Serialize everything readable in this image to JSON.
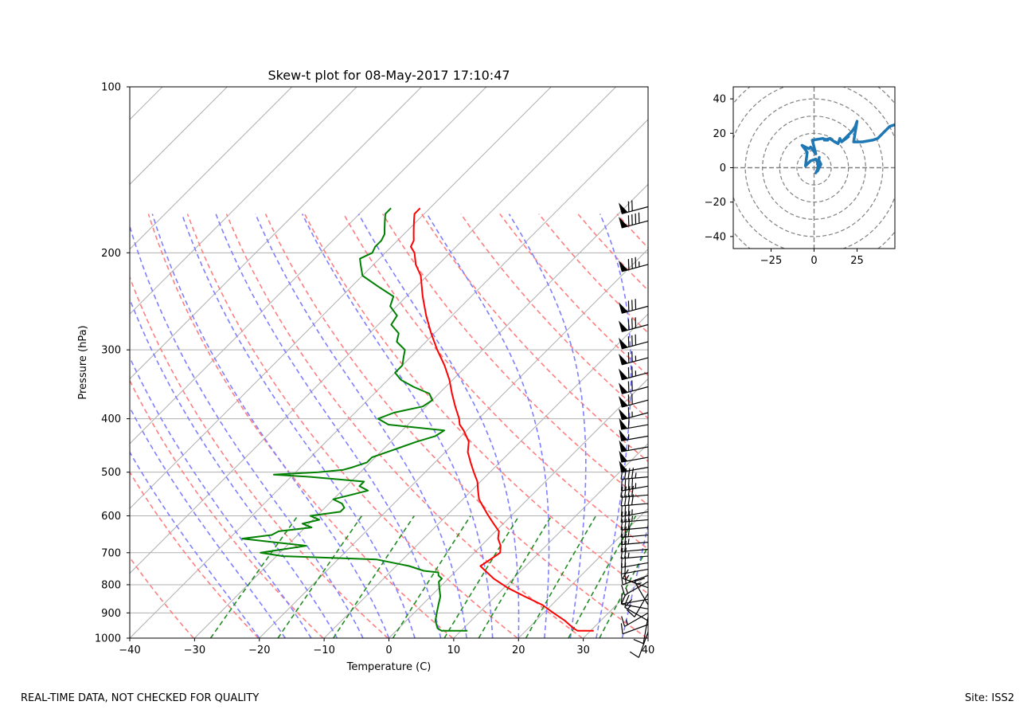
{
  "footer": {
    "disclaimer": "REAL-TIME DATA, NOT CHECKED FOR QUALITY",
    "site": "Site: ISS2"
  },
  "colors": {
    "temperature": "#ff0000",
    "dewpoint": "#008000",
    "dry_adiabats": "#ff7f7f",
    "moist_adiabats": "#7f7fff",
    "mixing_ratio": "#228b22",
    "isotherms": "#b0b0b0",
    "hodograph": "#1f77b4",
    "barbs": "#000000"
  },
  "chart_data": [
    {
      "type": "skew-t",
      "title": "Skew-t plot for 08-May-2017 17:10:47",
      "xlabel": "Temperature (C)",
      "ylabel": "Pressure (hPa)",
      "xlim": [
        -40,
        40
      ],
      "ylim": [
        1000,
        100
      ],
      "y_scale": "log",
      "x_ticks": [
        -40,
        -30,
        -20,
        -10,
        0,
        10,
        20,
        30,
        40
      ],
      "x_tick_labels": [
        "−40",
        "−30",
        "−20",
        "−10",
        "0",
        "10",
        "20",
        "30",
        "40"
      ],
      "y_ticks": [
        1000,
        900,
        800,
        700,
        600,
        500,
        400,
        300,
        200,
        100
      ],
      "grid": true,
      "series": [
        {
          "key": "temperature",
          "pressure": [
            970,
            970,
            960,
            930,
            900,
            870,
            840,
            810,
            780,
            750,
            740,
            720,
            700,
            680,
            660,
            640,
            620,
            600,
            580,
            560,
            540,
            520,
            500,
            480,
            460,
            440,
            420,
            410,
            400,
            380,
            360,
            340,
            320,
            300,
            280,
            260,
            240,
            220,
            210,
            200,
            195,
            190,
            185,
            180,
            175,
            170,
            166
          ],
          "values": [
            30.5,
            28,
            27,
            24.5,
            21.5,
            18.5,
            14.5,
            10.5,
            7,
            4,
            3,
            3.5,
            4,
            3,
            1.5,
            0.5,
            -1.5,
            -3.5,
            -5.5,
            -7.5,
            -9,
            -10.5,
            -12.5,
            -14.5,
            -16.5,
            -18,
            -20.5,
            -22,
            -23,
            -25.5,
            -28,
            -30.5,
            -33.5,
            -37,
            -40.5,
            -44,
            -47.5,
            -51,
            -53.5,
            -55.5,
            -57,
            -57.5,
            -58.5,
            -59.5,
            -60.5,
            -61.5,
            -61.5
          ]
        },
        {
          "key": "dewpoint",
          "pressure": [
            970,
            970,
            960,
            930,
            900,
            870,
            840,
            810,
            790,
            780,
            770,
            760,
            755,
            740,
            720,
            710,
            700,
            690,
            680,
            670,
            660,
            650,
            640,
            630,
            620,
            610,
            600,
            590,
            580,
            570,
            560,
            550,
            540,
            530,
            520,
            510,
            505,
            500,
            495,
            490,
            480,
            470,
            460,
            450,
            440,
            430,
            420,
            410,
            400,
            390,
            380,
            370,
            360,
            350,
            340,
            330,
            320,
            310,
            300,
            290,
            280,
            270,
            260,
            250,
            240,
            230,
            220,
            210,
            205,
            200,
            195,
            190,
            185,
            180,
            175,
            170,
            166
          ],
          "values": [
            11,
            7,
            6,
            4.5,
            3.5,
            2.5,
            1.5,
            0,
            -1,
            -1,
            -2,
            -2.5,
            -5,
            -8,
            -14,
            -29,
            -33,
            -30,
            -27,
            -32.5,
            -38,
            -34,
            -33.5,
            -29,
            -31,
            -29,
            -31,
            -27,
            -27,
            -28,
            -30,
            -28,
            -26,
            -28,
            -28,
            -37,
            -43,
            -36.5,
            -33,
            -32,
            -30.5,
            -30.5,
            -29,
            -27.5,
            -26,
            -24,
            -23.5,
            -33,
            -35.5,
            -34,
            -30.5,
            -30,
            -31.5,
            -35,
            -38,
            -40,
            -40,
            -41,
            -42,
            -44.5,
            -45.5,
            -48,
            -48.5,
            -51,
            -52,
            -56,
            -60,
            -62,
            -63,
            -62,
            -62.5,
            -62.5,
            -63,
            -64,
            -65,
            -66,
            -66
          ]
        },
        {
          "key": "dry_adiabats",
          "linestyle": "dashed",
          "theta_K": [
            243,
            253,
            263,
            273,
            283,
            293,
            303,
            313,
            323,
            333,
            343,
            353,
            363,
            373,
            383,
            393,
            403,
            413,
            423,
            433,
            443,
            453,
            463,
            473
          ]
        },
        {
          "key": "moist_adiabats",
          "linestyle": "dashed",
          "start_temp_C": [
            -20,
            -16,
            -12,
            -8,
            -4,
            0,
            4,
            8,
            12,
            16,
            20,
            24,
            28,
            32,
            36
          ],
          "p_top_hPa": 170
        },
        {
          "key": "mixing_ratio",
          "linestyle": "dashed",
          "w_g_per_kg": [
            0.4,
            1,
            2,
            4,
            7,
            10,
            16,
            24,
            32
          ],
          "p_top_hPa": 600
        },
        {
          "key": "isotherms",
          "values": [
            -170,
            -160,
            -150,
            -140,
            -130,
            -120,
            -110,
            -100,
            -90,
            -80,
            -70,
            -60,
            -50,
            -40,
            -30,
            -20,
            -10,
            0,
            10,
            20,
            30,
            40
          ]
        }
      ],
      "wind_barbs": {
        "pressure": [
          975,
          945,
          930,
          915,
          900,
          885,
          870,
          850,
          830,
          810,
          790,
          770,
          750,
          730,
          710,
          690,
          670,
          650,
          630,
          610,
          590,
          570,
          550,
          530,
          510,
          490,
          470,
          450,
          430,
          410,
          390,
          370,
          350,
          330,
          310,
          290,
          270,
          250,
          210,
          175,
          165
        ],
        "speed_kt": [
          10,
          10,
          15,
          10,
          15,
          20,
          15,
          10,
          10,
          15,
          15,
          20,
          20,
          20,
          25,
          20,
          25,
          30,
          30,
          35,
          35,
          40,
          40,
          45,
          45,
          50,
          50,
          55,
          55,
          60,
          65,
          70,
          70,
          75,
          75,
          80,
          80,
          80,
          85,
          90,
          70
        ],
        "direction_deg": [
          200,
          250,
          300,
          190,
          240,
          280,
          330,
          260,
          210,
          290,
          240,
          250,
          260,
          260,
          265,
          265,
          265,
          265,
          265,
          265,
          260,
          265,
          265,
          260,
          265,
          260,
          260,
          260,
          260,
          260,
          255,
          255,
          255,
          255,
          255,
          255,
          255,
          255,
          255,
          255,
          255
        ]
      }
    },
    {
      "type": "hodograph",
      "x_ticks": [
        -25,
        0,
        25
      ],
      "x_tick_labels": [
        "−25",
        "0",
        "25"
      ],
      "y_ticks": [
        -40,
        -20,
        0,
        20,
        40
      ],
      "y_tick_labels": [
        "−40",
        "−20",
        "0",
        "20",
        "40"
      ],
      "xlim": [
        -47,
        47
      ],
      "ylim": [
        -47,
        47
      ],
      "ring_spacing": 10,
      "u": [
        2,
        3,
        4,
        3,
        2,
        3,
        2,
        1,
        3,
        1,
        -2,
        -5,
        -4,
        -7,
        -3,
        -2,
        1,
        -1,
        5,
        8,
        6,
        9,
        12,
        14,
        15,
        16,
        20,
        17,
        22,
        24,
        25,
        23,
        28,
        34,
        37,
        41,
        44,
        47
      ],
      "v": [
        -2,
        0,
        2,
        4,
        2,
        6,
        -1,
        -3,
        1,
        5,
        4,
        1,
        9,
        13,
        11,
        12,
        8,
        16,
        17,
        16,
        16,
        17,
        15,
        14,
        17,
        15,
        18,
        16,
        21,
        24,
        27,
        15,
        15,
        16,
        17,
        21,
        24,
        25
      ]
    }
  ]
}
